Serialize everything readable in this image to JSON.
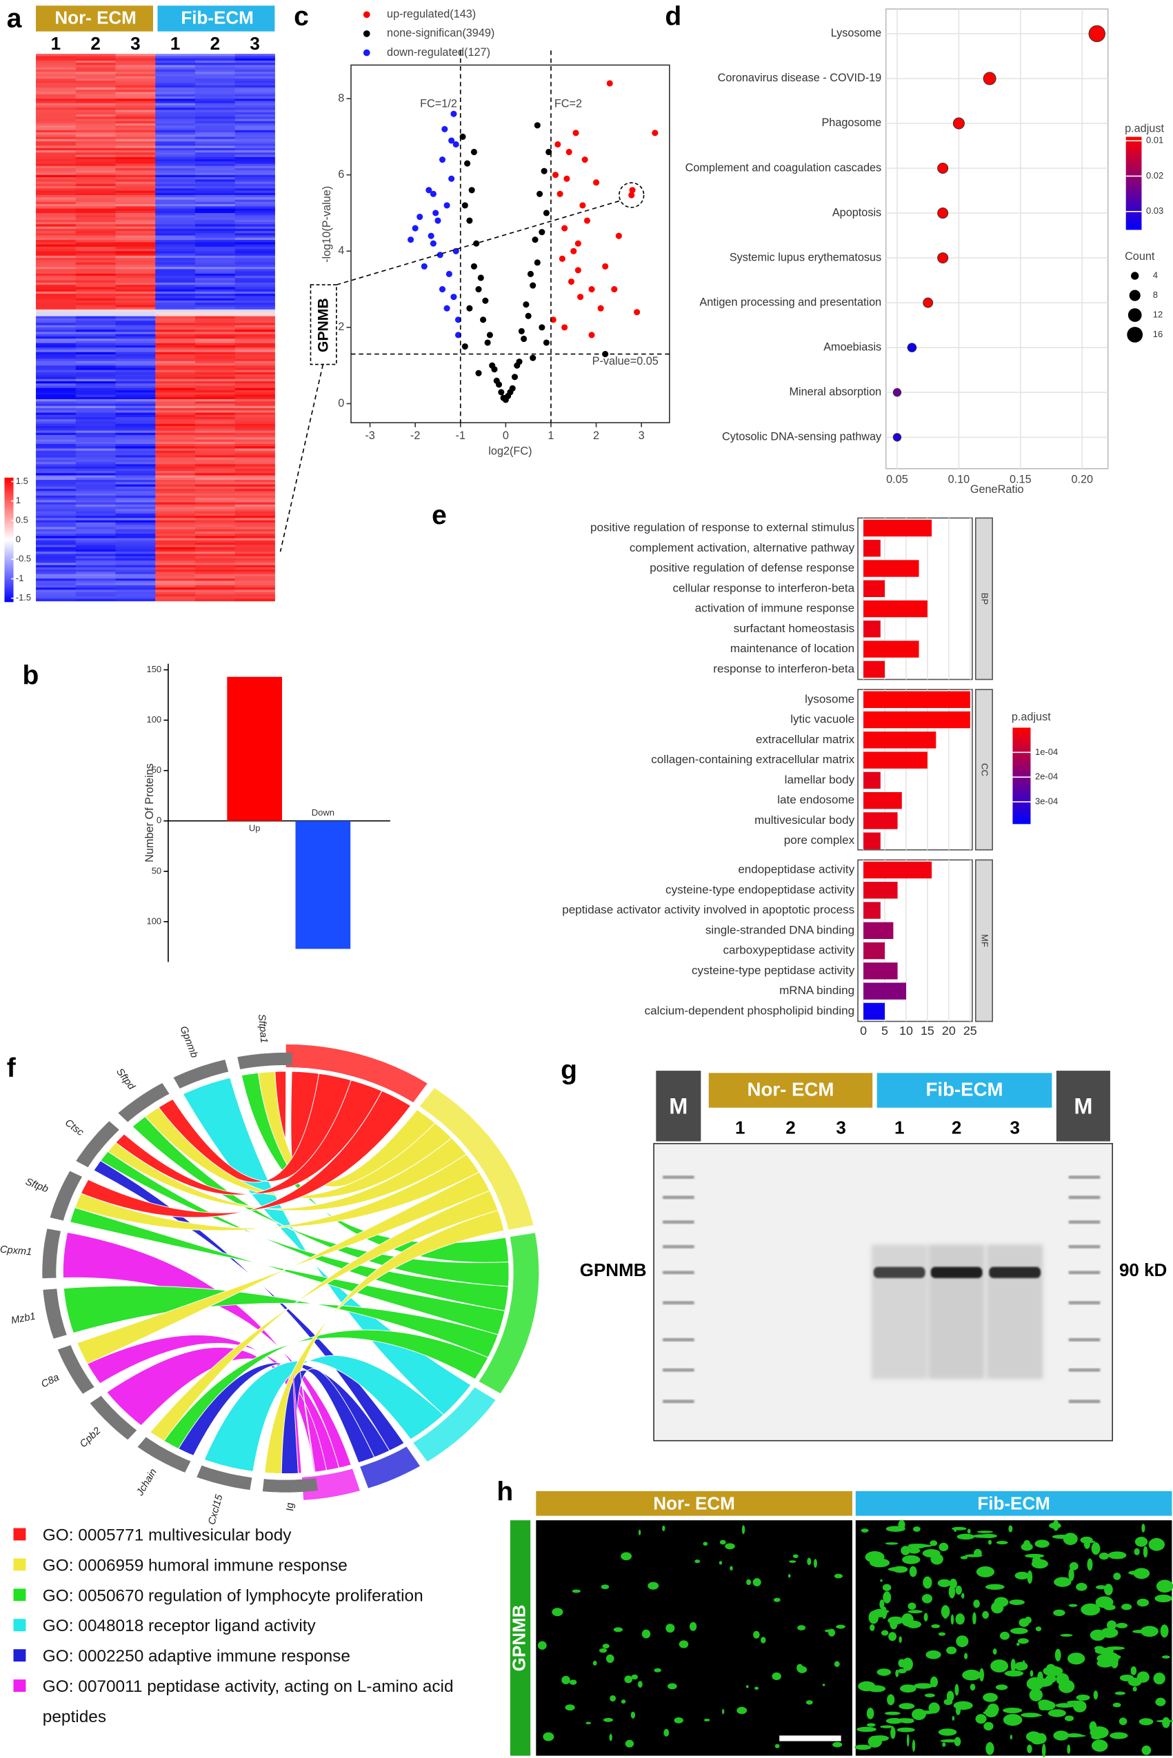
{
  "panels": [
    "a",
    "b",
    "c",
    "d",
    "e",
    "f",
    "g",
    "h"
  ],
  "chart_data": [
    {
      "type": "heatmap",
      "groups": [
        {
          "name": "Nor- ECM",
          "color": "#c49a1c"
        },
        {
          "name": "Fib-ECM",
          "color": "#29b5ea"
        }
      ],
      "columns": [
        "1",
        "2",
        "3",
        "1",
        "2",
        "3"
      ],
      "colorbar": {
        "ticks": [
          1.5,
          1,
          0.5,
          0,
          -0.5,
          -1,
          -1.5
        ],
        "lim": [
          -1.6,
          1.6
        ]
      }
    },
    {
      "type": "bar",
      "ylabel": "Number Of Proteins",
      "categories": [
        "Up",
        "Down"
      ],
      "values": [
        143,
        -127
      ],
      "colors": [
        "#ff0000",
        "#1a4dff"
      ],
      "ylim": [
        -140,
        156
      ],
      "yticks": [
        150,
        100,
        50,
        0,
        {
          "value": -50,
          "label": "50"
        },
        {
          "value": -100,
          "label": "100"
        }
      ]
    },
    {
      "type": "scatter",
      "xlabel": "log2(FC)",
      "ylabel": "-log10(P-value)",
      "xlim": [
        -3.42,
        3.62
      ],
      "ylim": [
        -0.5,
        8.88
      ],
      "xticks": [
        -3,
        -2,
        -1,
        0,
        1,
        2,
        3
      ],
      "yticks": [
        0,
        2,
        4,
        6,
        8
      ],
      "fc_lines": [
        -1,
        1
      ],
      "p_line": 1.301,
      "annotations": [
        "FC=1/2",
        "FC=2",
        "P-value=0.05"
      ],
      "highlight_label": "GPNMB",
      "series": [
        {
          "name": "up-regulated(143)",
          "color": "#ff0000",
          "x": [
            1.1,
            1.2,
            1.3,
            1.4,
            1.5,
            1.6,
            1.7,
            1.8,
            1.9,
            2.0,
            2.1,
            2.3,
            2.5,
            2.78,
            2.9,
            3.3,
            1.15,
            1.25,
            1.35,
            1.45,
            1.55,
            1.65,
            1.75,
            2.2,
            2.8,
            1.05,
            1.3,
            1.6,
            1.9,
            2.4
          ],
          "y": [
            6.0,
            5.5,
            4.6,
            6.6,
            4.0,
            3.5,
            5.2,
            4.8,
            3.0,
            5.8,
            2.5,
            8.4,
            4.4,
            5.47,
            2.4,
            7.1,
            6.8,
            3.8,
            5.9,
            3.2,
            7.1,
            2.8,
            6.4,
            3.6,
            5.6,
            2.2,
            2.0,
            4.2,
            1.8,
            3.0
          ]
        },
        {
          "name": "none-significan(3949)",
          "color": "#000000",
          "x": [
            -0.9,
            -0.8,
            -0.7,
            -0.6,
            -0.5,
            -0.4,
            -0.3,
            -0.2,
            -0.1,
            0,
            0.1,
            0.2,
            0.3,
            0.4,
            0.5,
            0.6,
            0.7,
            0.8,
            0.9,
            -0.95,
            -0.85,
            -0.75,
            -0.65,
            -0.55,
            -0.45,
            -0.35,
            0.35,
            0.45,
            0.55,
            0.65,
            0.75,
            0.85,
            0.95,
            -0.25,
            0.25,
            -0.15,
            0.15,
            0.05,
            -0.05,
            -0.9,
            0.9,
            -0.6,
            0.6,
            -0.8,
            0.8,
            2.2,
            -0.7,
            0.7
          ],
          "y": [
            5.2,
            4.8,
            3.6,
            3.0,
            2.2,
            1.6,
            1.0,
            0.6,
            0.3,
            0.1,
            0.3,
            0.7,
            1.1,
            1.7,
            2.3,
            3.1,
            3.7,
            4.5,
            5.0,
            7.0,
            6.3,
            5.6,
            4.2,
            3.3,
            2.7,
            1.8,
            1.9,
            2.6,
            3.4,
            4.3,
            5.5,
            6.1,
            6.6,
            0.9,
            1.0,
            0.5,
            0.4,
            0.2,
            0.15,
            1.5,
            1.6,
            0.8,
            1.2,
            2.5,
            2.0,
            1.3,
            6.6,
            7.3
          ]
        },
        {
          "name": "down-regulated(127)",
          "color": "#1a1aff",
          "x": [
            -1.1,
            -1.2,
            -1.3,
            -1.4,
            -1.5,
            -1.6,
            -1.7,
            -1.8,
            -1.9,
            -2.0,
            -1.15,
            -1.25,
            -1.35,
            -1.45,
            -1.55,
            -1.65,
            -1.05,
            -1.1,
            -1.2,
            -1.3,
            -1.6,
            -1.4,
            -1.05,
            -1.15,
            -2.1
          ],
          "y": [
            6.8,
            5.9,
            5.2,
            6.4,
            4.8,
            4.2,
            5.6,
            3.6,
            4.9,
            4.6,
            2.8,
            3.4,
            7.2,
            3.9,
            5.0,
            4.4,
            2.2,
            4.0,
            6.9,
            2.5,
            5.5,
            3.0,
            1.8,
            7.6,
            4.3
          ]
        }
      ]
    },
    {
      "type": "dot",
      "xlabel": "GeneRatio",
      "categories": [
        "Lysosome",
        "Coronavirus disease - COVID-19",
        "Phagosome",
        "Complement and coagulation cascades",
        "Apoptosis",
        "Systemic lupus erythematosus",
        "Antigen processing and presentation",
        "Amoebiasis",
        "Mineral absorption",
        "Cytosolic DNA-sensing pathway"
      ],
      "values": [
        0.212,
        0.125,
        0.1,
        0.087,
        0.087,
        0.087,
        0.075,
        0.062,
        0.05,
        0.05
      ],
      "counts": [
        17,
        10,
        8,
        7,
        7,
        7,
        6,
        5,
        4,
        4
      ],
      "padj": [
        0.0009,
        0.003,
        0.004,
        0.004,
        0.004,
        0.004,
        0.005,
        0.034,
        0.024,
        0.032
      ],
      "xlim": [
        0.0409,
        0.2209
      ],
      "xticks": [
        0.05,
        {
          "value": 0.1,
          "label": "0.10"
        },
        0.15,
        {
          "value": 0.2,
          "label": "0.20"
        }
      ],
      "color_legend": {
        "title": "p.adjust",
        "ticks": [
          0.01,
          0.02,
          0.03
        ],
        "lim": [
          0.00826,
          0.0352
        ]
      },
      "size_legend": {
        "title": "Count",
        "values": [
          4,
          8,
          12,
          16
        ]
      }
    },
    {
      "type": "hbar",
      "facets": [
        {
          "name": "BP",
          "categories": [
            "positive regulation of response to external stimulus",
            "complement activation, alternative pathway",
            "positive regulation of defense response",
            "cellular response to interferon-beta",
            "activation of immune response",
            "surfactant homeostasis",
            "maintenance of location",
            "response to interferon-beta"
          ],
          "values": [
            16,
            4,
            13,
            5,
            15,
            4,
            13,
            5
          ],
          "padj": [
            1e-05,
            2e-05,
            1e-05,
            2e-05,
            1e-05,
            3e-05,
            1e-05,
            2e-05
          ]
        },
        {
          "name": "CC",
          "categories": [
            "lysosome",
            "lytic vacuole",
            "extracellular matrix",
            "collagen-containing extracellular matrix",
            "lamellar body",
            "late endosome",
            "multivesicular body",
            "pore complex"
          ],
          "values": [
            25,
            25,
            17,
            15,
            4,
            9,
            8,
            4
          ],
          "padj": [
            5e-06,
            5e-06,
            1e-05,
            1e-05,
            4e-05,
            2e-05,
            3e-05,
            4e-05
          ]
        },
        {
          "name": "MF",
          "categories": [
            "endopeptidase activity",
            "cysteine-type endopeptidase activity",
            "peptidase activator activity involved in apoptotic process",
            "single-stranded DNA binding",
            "carboxypeptidase activity",
            "cysteine-type peptidase activity",
            "mRNA binding",
            "calcium-dependent phospholipid binding"
          ],
          "values": [
            16,
            8,
            4,
            7,
            5,
            8,
            10,
            5
          ],
          "padj": [
            2e-05,
            4e-05,
            6e-05,
            0.00015,
            0.00012,
            0.00016,
            0.00019,
            0.00037
          ]
        }
      ],
      "xlim": [
        -1.3,
        25.5
      ],
      "xticks": [
        0,
        5,
        10,
        15,
        20,
        25
      ],
      "color_legend": {
        "title": "p.adjust",
        "ticks": [
          {
            "value": 0.0001,
            "label": "1e-04"
          },
          {
            "value": 0.0002,
            "label": "2e-04"
          },
          {
            "value": 0.0003,
            "label": "3e-04"
          }
        ],
        "lim": [
          0,
          0.00039
        ]
      }
    }
  ],
  "chord": {
    "genes": [
      "Sftpa1",
      "Gpnmb",
      "Sftpd",
      "Ctsc",
      "Sftpb",
      "Cpxm1",
      "Mzb1",
      "C8a",
      "Cpb2",
      "Jchain",
      "Cxcl15",
      "Ig"
    ],
    "terms": [
      {
        "name": "GO: 0005771 multivesicular body",
        "color": "#ff1a1a"
      },
      {
        "name": "GO: 0006959 humoral immune response",
        "color": "#f0e83c"
      },
      {
        "name": "GO: 0050670 regulation of lymphocyte proliferation",
        "color": "#22e022"
      },
      {
        "name": "GO: 0048018 receptor ligand activity",
        "color": "#22e8e8"
      },
      {
        "name": "GO: 0002250 adaptive immune response",
        "color": "#2020d8"
      },
      {
        "name": "GO: 0070011 peptidase activity, acting on L-amino acid peptides",
        "color": "#f020f0"
      }
    ]
  },
  "western_blot": {
    "markers": [
      "M",
      "M"
    ],
    "groups": [
      "Nor- ECM",
      "Fib-ECM"
    ],
    "lanes": [
      "1",
      "2",
      "3",
      "1",
      "2",
      "3"
    ],
    "protein": "GPNMB",
    "size": "90 kD"
  },
  "staining": {
    "groups": [
      "Nor- ECM",
      "Fib-ECM"
    ],
    "stain": "GPNMB"
  }
}
